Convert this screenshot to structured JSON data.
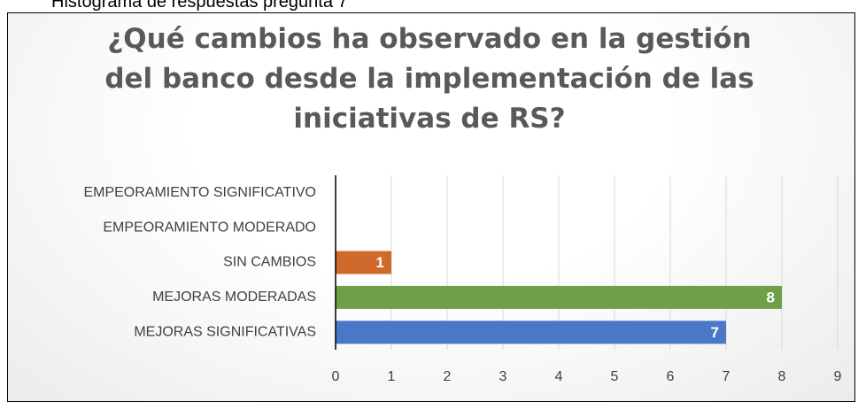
{
  "caption": "Histograma de respuestas pregunta 7",
  "chart_data": {
    "type": "hbar",
    "title": "¿Qué cambios ha observado en la gestión del banco desde la implementación de las iniciativas de RS?",
    "categories": [
      "EMPEORAMIENTO SIGNIFICATIVO",
      "EMPEORAMIENTO MODERADO",
      "SIN CAMBIOS",
      "MEJORAS MODERADAS",
      "MEJORAS SIGNIFICATIVAS"
    ],
    "values": [
      0,
      0,
      1,
      8,
      7
    ],
    "colors": [
      null,
      null,
      "#d0692c",
      "#6f9f48",
      "#4a78c7"
    ],
    "xlim": [
      0,
      9
    ],
    "xticks": [
      0,
      1,
      2,
      3,
      4,
      5,
      6,
      7,
      8,
      9
    ],
    "grid": true
  }
}
